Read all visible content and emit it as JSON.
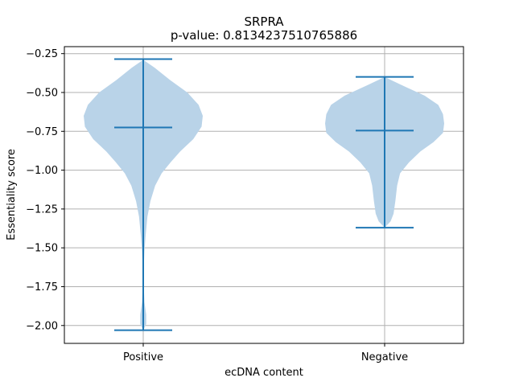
{
  "chart_data": {
    "type": "violin",
    "title": "SRPRA",
    "subtitle": "p-value: 0.8134237510765886",
    "xlabel": "ecDNA content",
    "ylabel": "Essentiality score",
    "categories": [
      "Positive",
      "Negative"
    ],
    "ylim": [
      -2.115,
      -0.205
    ],
    "yticks": [
      -2.0,
      -1.75,
      -1.5,
      -1.25,
      -1.0,
      -0.75,
      -0.5,
      -0.25
    ],
    "ytick_labels": [
      "−2.00",
      "−1.75",
      "−1.50",
      "−1.25",
      "−1.00",
      "−0.75",
      "−0.50",
      "−0.25"
    ],
    "grid": true,
    "colors": {
      "body": "#b9d3e8",
      "lines": "#1f77b4"
    },
    "violins": [
      {
        "category": "Positive",
        "max": -0.285,
        "median": -0.725,
        "min": -2.03,
        "density_profile": [
          [
            -0.29,
            0.0
          ],
          [
            -0.34,
            0.19
          ],
          [
            -0.42,
            0.45
          ],
          [
            -0.5,
            0.74
          ],
          [
            -0.58,
            0.93
          ],
          [
            -0.65,
            1.0
          ],
          [
            -0.72,
            0.98
          ],
          [
            -0.8,
            0.84
          ],
          [
            -0.88,
            0.62
          ],
          [
            -0.95,
            0.46
          ],
          [
            -1.02,
            0.31
          ],
          [
            -1.1,
            0.2
          ],
          [
            -1.2,
            0.12
          ],
          [
            -1.3,
            0.07
          ],
          [
            -1.42,
            0.04
          ],
          [
            -1.52,
            0.02
          ],
          [
            -1.62,
            0.01
          ],
          [
            -1.75,
            0.01
          ],
          [
            -1.85,
            0.02
          ],
          [
            -1.93,
            0.05
          ],
          [
            -1.99,
            0.05
          ],
          [
            -2.03,
            0.0
          ]
        ]
      },
      {
        "category": "Negative",
        "max": -0.4,
        "median": -0.745,
        "min": -1.37,
        "density_profile": [
          [
            -0.4,
            0.0
          ],
          [
            -0.45,
            0.27
          ],
          [
            -0.52,
            0.67
          ],
          [
            -0.58,
            0.9
          ],
          [
            -0.64,
            0.98
          ],
          [
            -0.7,
            1.0
          ],
          [
            -0.76,
            0.98
          ],
          [
            -0.82,
            0.82
          ],
          [
            -0.88,
            0.6
          ],
          [
            -0.95,
            0.41
          ],
          [
            -1.02,
            0.26
          ],
          [
            -1.1,
            0.21
          ],
          [
            -1.2,
            0.18
          ],
          [
            -1.28,
            0.15
          ],
          [
            -1.33,
            0.1
          ],
          [
            -1.37,
            0.0
          ]
        ]
      }
    ]
  }
}
